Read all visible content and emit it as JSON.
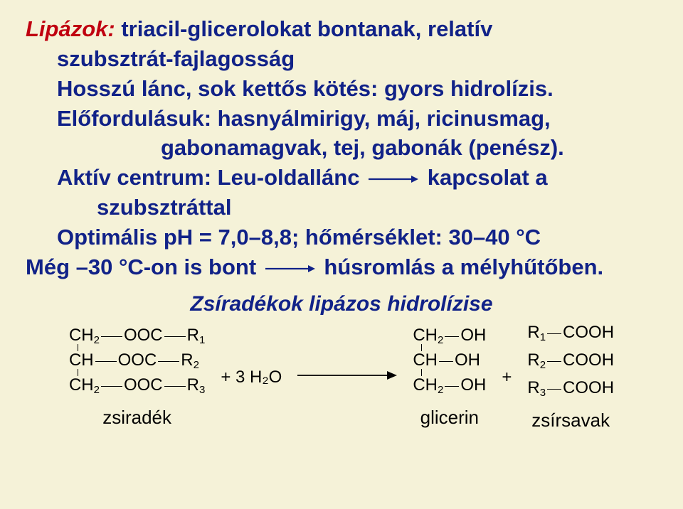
{
  "slide": {
    "title_red": "Lipázok:",
    "title_rest": " triacil-glicerolokat bontanak, relatív",
    "line2": "szubsztrát-fajlagosság",
    "line3": "Hosszú lánc, sok kettős kötés: gyors hidrolízis.",
    "line4": "Előfordulásuk: hasnyálmirigy, máj, ricinusmag,",
    "line5": "gabonamagvak, tej, gabonák (penész).",
    "line6a": "Aktív centrum: Leu-oldallánc",
    "line6b": "kapcsolat a",
    "line7": "szubsztráttal",
    "line8": "Optimális pH = 7,0–8,8; hőmérséklet: 30–40 °C",
    "line9a": "Még –30 °C-on is bont",
    "line9b": "húsromlás a mélyhűtőben.",
    "reaction_title": "Zsíradékok lipázos hidrolízise",
    "fat": {
      "rows": [
        {
          "left": "CH",
          "sub": "2",
          "mid": "OOC",
          "r": "R",
          "rsub": "1"
        },
        {
          "left": "CH",
          "sub": "",
          "mid": "OOC",
          "r": "R",
          "rsub": "2"
        },
        {
          "left": "CH",
          "sub": "2",
          "mid": "OOC",
          "r": "R",
          "rsub": "3"
        }
      ],
      "label": "zsiradék"
    },
    "water": "+ 3 H₂O",
    "glycerol": {
      "rows": [
        {
          "left": "CH",
          "sub": "2",
          "oh": "OH"
        },
        {
          "left": "CH",
          "sub": "",
          "oh": "OH"
        },
        {
          "left": "CH",
          "sub": "2",
          "oh": "OH"
        }
      ],
      "label": "glicerin"
    },
    "plus": "+",
    "acids": {
      "rows": [
        {
          "r": "R",
          "rsub": "1",
          "cooh": "COOH"
        },
        {
          "r": "R",
          "rsub": "2",
          "cooh": "COOH"
        },
        {
          "r": "R",
          "rsub": "3",
          "cooh": "COOH"
        }
      ],
      "label": "zsírsavak"
    },
    "colors": {
      "bg": "#f5f2d8",
      "text": "#112288",
      "red": "#c00010",
      "black": "#000"
    }
  }
}
